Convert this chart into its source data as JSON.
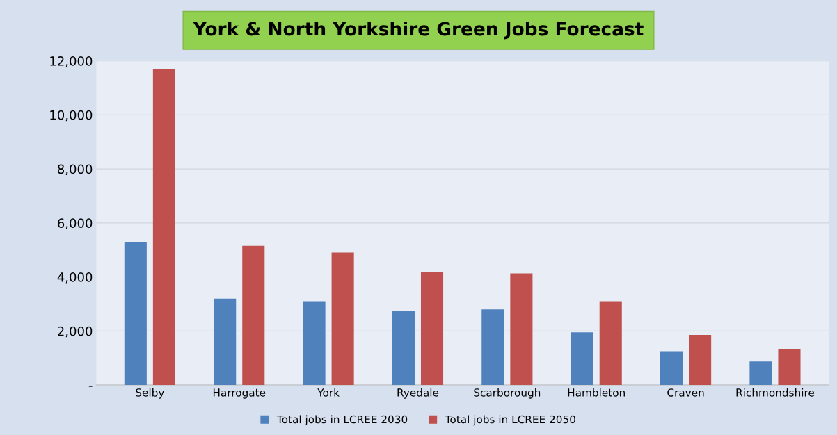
{
  "chart_data": {
    "type": "bar",
    "title": "York & North Yorkshire Green Jobs Forecast",
    "categories": [
      "Selby",
      "Harrogate",
      "York",
      "Ryedale",
      "Scarborough",
      "Hambleton",
      "Craven",
      "Richmondshire"
    ],
    "series": [
      {
        "name": "Total jobs in LCREE 2030",
        "color": "#4f81bd",
        "values": [
          5300,
          3200,
          3100,
          2750,
          2800,
          1950,
          1250,
          870
        ]
      },
      {
        "name": "Total jobs in LCREE 2050",
        "color": "#c0504d",
        "values": [
          11700,
          5150,
          4900,
          4180,
          4130,
          3100,
          1850,
          1340
        ]
      }
    ],
    "ylim": [
      0,
      12000
    ],
    "yticks": [
      {
        "value": 0,
        "label": "-"
      },
      {
        "value": 2000,
        "label": "2,000"
      },
      {
        "value": 4000,
        "label": "4,000"
      },
      {
        "value": 6000,
        "label": "6,000"
      },
      {
        "value": 8000,
        "label": "8,000"
      },
      {
        "value": 10000,
        "label": "10,000"
      },
      {
        "value": 12000,
        "label": "12,000"
      }
    ],
    "grid": "y",
    "legend": "bottom"
  }
}
